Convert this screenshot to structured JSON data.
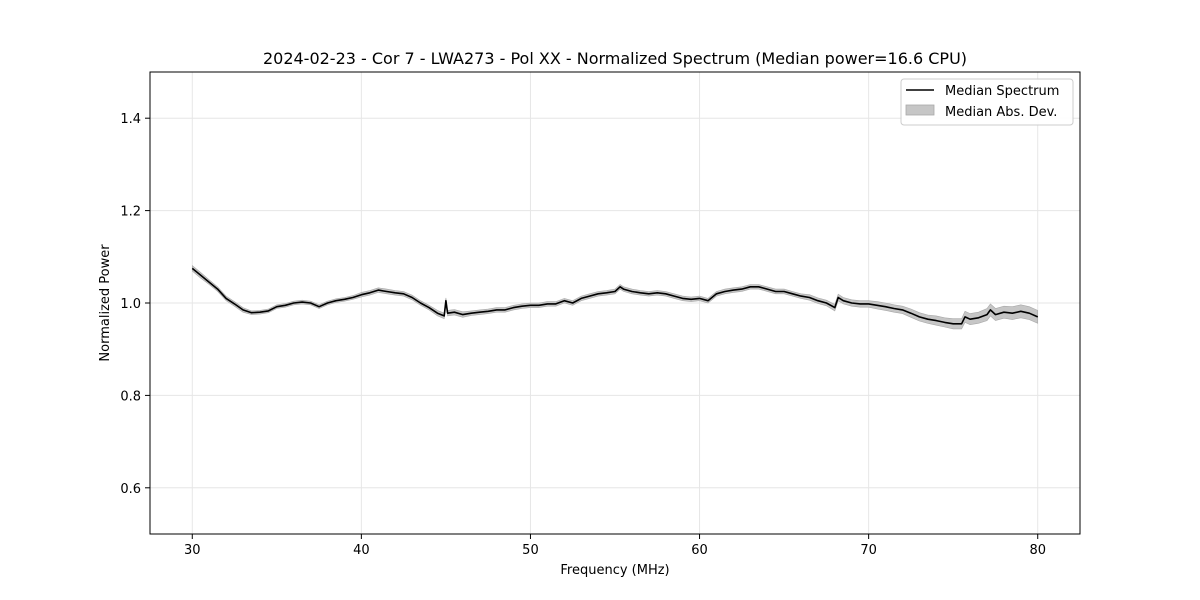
{
  "chart_data": {
    "type": "line",
    "title": "2024-02-23 - Cor 7 - LWA273 - Pol XX - Normalized Spectrum (Median power=16.6 CPU)",
    "xlabel": "Frequency (MHz)",
    "ylabel": "Normalized Power",
    "xlim": [
      27.5,
      82.5
    ],
    "ylim": [
      0.5,
      1.5
    ],
    "xticks": [
      30,
      40,
      50,
      60,
      70,
      80
    ],
    "xtick_labels": [
      "30",
      "40",
      "50",
      "60",
      "70",
      "80"
    ],
    "yticks": [
      0.6,
      0.8,
      1.0,
      1.2,
      1.4
    ],
    "ytick_labels": [
      "0.6",
      "0.8",
      "1.0",
      "1.2",
      "1.4"
    ],
    "grid": true,
    "legend": {
      "placement": "upper right",
      "entries": [
        "Median Spectrum",
        "Median Abs. Dev."
      ]
    },
    "colors": {
      "line": "#000000",
      "band": "#b0b0b0",
      "grid": "#e6e6e6"
    },
    "series": [
      {
        "name": "Median Spectrum",
        "x": [
          30.0,
          30.5,
          31.0,
          31.5,
          32.0,
          32.5,
          33.0,
          33.5,
          34.0,
          34.5,
          35.0,
          35.5,
          36.0,
          36.5,
          37.0,
          37.5,
          38.0,
          38.5,
          39.0,
          39.5,
          40.0,
          40.5,
          41.0,
          41.5,
          42.0,
          42.5,
          43.0,
          43.5,
          44.0,
          44.5,
          44.9,
          45.0,
          45.1,
          45.5,
          46.0,
          46.5,
          47.0,
          47.5,
          48.0,
          48.5,
          49.0,
          49.5,
          50.0,
          50.5,
          51.0,
          51.5,
          52.0,
          52.5,
          53.0,
          53.5,
          54.0,
          54.5,
          55.0,
          55.3,
          55.5,
          56.0,
          56.5,
          57.0,
          57.5,
          58.0,
          58.5,
          59.0,
          59.5,
          60.0,
          60.5,
          61.0,
          61.5,
          62.0,
          62.5,
          63.0,
          63.5,
          64.0,
          64.5,
          65.0,
          65.5,
          66.0,
          66.5,
          67.0,
          67.5,
          68.0,
          68.2,
          68.5,
          69.0,
          69.5,
          70.0,
          70.5,
          71.0,
          71.5,
          72.0,
          72.5,
          73.0,
          73.5,
          74.0,
          74.5,
          75.0,
          75.5,
          75.7,
          76.0,
          76.5,
          77.0,
          77.2,
          77.5,
          78.0,
          78.5,
          79.0,
          79.5,
          80.0
        ],
        "y": [
          1.075,
          1.06,
          1.045,
          1.03,
          1.01,
          0.998,
          0.985,
          0.979,
          0.98,
          0.983,
          0.992,
          0.995,
          1.0,
          1.002,
          1.0,
          0.992,
          1.0,
          1.005,
          1.008,
          1.012,
          1.018,
          1.022,
          1.028,
          1.025,
          1.022,
          1.02,
          1.012,
          1.0,
          0.99,
          0.978,
          0.972,
          1.005,
          0.978,
          0.98,
          0.975,
          0.978,
          0.98,
          0.982,
          0.985,
          0.985,
          0.99,
          0.993,
          0.995,
          0.995,
          0.998,
          0.998,
          1.005,
          1.0,
          1.01,
          1.015,
          1.02,
          1.022,
          1.025,
          1.035,
          1.03,
          1.025,
          1.022,
          1.02,
          1.022,
          1.02,
          1.015,
          1.01,
          1.008,
          1.01,
          1.005,
          1.02,
          1.025,
          1.028,
          1.03,
          1.035,
          1.035,
          1.03,
          1.025,
          1.025,
          1.02,
          1.015,
          1.012,
          1.005,
          1.0,
          0.99,
          1.012,
          1.005,
          1.0,
          0.998,
          0.998,
          0.995,
          0.992,
          0.988,
          0.985,
          0.978,
          0.97,
          0.965,
          0.962,
          0.958,
          0.955,
          0.955,
          0.97,
          0.965,
          0.968,
          0.975,
          0.985,
          0.975,
          0.98,
          0.978,
          0.982,
          0.978,
          0.97
        ]
      }
    ],
    "band": {
      "name": "Median Abs. Dev.",
      "halfwidth": [
        0.006,
        0.006,
        0.005,
        0.005,
        0.005,
        0.005,
        0.005,
        0.004,
        0.004,
        0.004,
        0.004,
        0.004,
        0.004,
        0.004,
        0.004,
        0.004,
        0.004,
        0.004,
        0.004,
        0.004,
        0.005,
        0.005,
        0.005,
        0.005,
        0.005,
        0.005,
        0.005,
        0.005,
        0.005,
        0.006,
        0.006,
        0.006,
        0.006,
        0.006,
        0.006,
        0.005,
        0.005,
        0.005,
        0.005,
        0.005,
        0.005,
        0.005,
        0.005,
        0.005,
        0.005,
        0.005,
        0.005,
        0.005,
        0.005,
        0.005,
        0.005,
        0.005,
        0.005,
        0.005,
        0.005,
        0.005,
        0.005,
        0.005,
        0.005,
        0.005,
        0.005,
        0.005,
        0.005,
        0.005,
        0.005,
        0.005,
        0.005,
        0.005,
        0.005,
        0.005,
        0.005,
        0.005,
        0.005,
        0.005,
        0.005,
        0.005,
        0.006,
        0.006,
        0.006,
        0.007,
        0.007,
        0.007,
        0.007,
        0.007,
        0.007,
        0.008,
        0.008,
        0.008,
        0.008,
        0.009,
        0.009,
        0.009,
        0.01,
        0.01,
        0.011,
        0.011,
        0.012,
        0.012,
        0.012,
        0.013,
        0.013,
        0.013,
        0.013,
        0.014,
        0.014,
        0.014,
        0.014
      ]
    }
  }
}
